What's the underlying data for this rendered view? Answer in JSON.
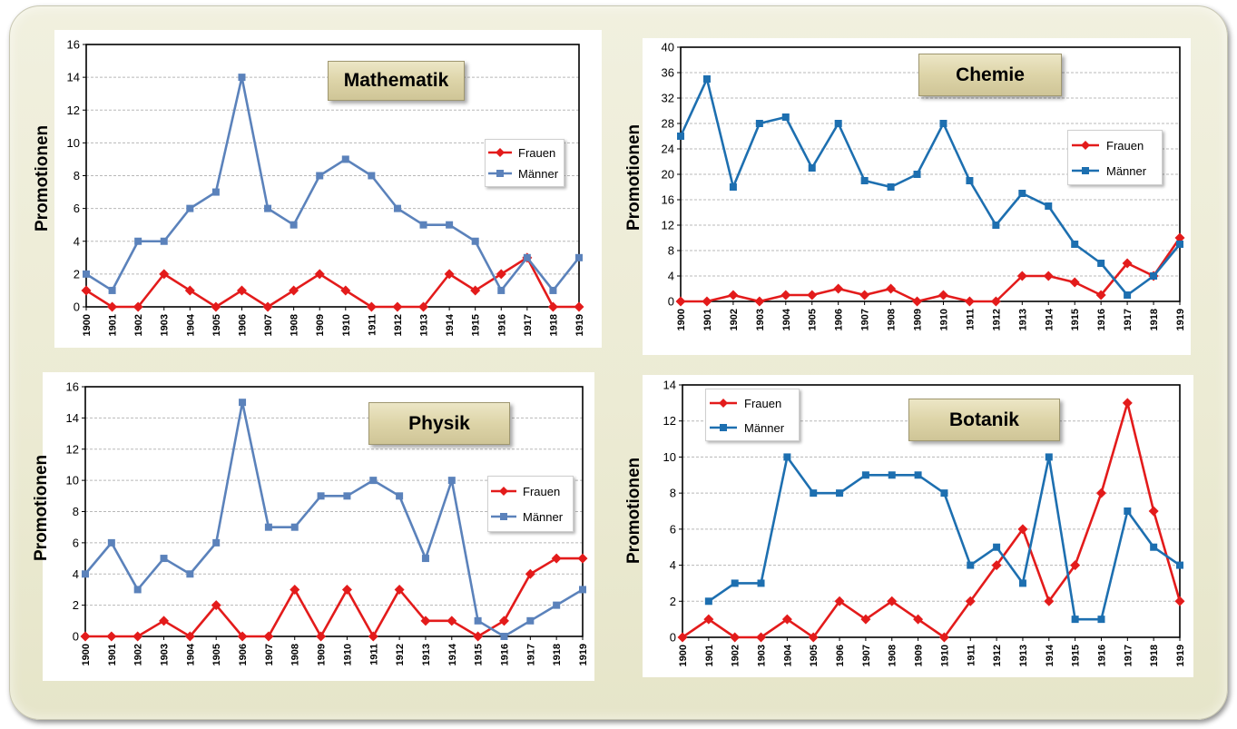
{
  "chart_data": [
    {
      "type": "line",
      "title": "Mathematik",
      "ylabel": "Promotionen",
      "ylim": [
        0,
        16
      ],
      "yticks": [
        0,
        2,
        4,
        6,
        8,
        10,
        12,
        14,
        16
      ],
      "categories": [
        "1900",
        "1901",
        "1902",
        "1903",
        "1904",
        "1905",
        "1906",
        "1907",
        "1908",
        "1909",
        "1910",
        "1911",
        "1912",
        "1913",
        "1914",
        "1915",
        "1916",
        "1917",
        "1918",
        "1919"
      ],
      "series": [
        {
          "name": "Frauen",
          "color": "#e31b1b",
          "marker": "diamond",
          "values": [
            1,
            0,
            0,
            2,
            1,
            0,
            1,
            0,
            1,
            2,
            1,
            0,
            0,
            0,
            2,
            1,
            2,
            3,
            0,
            0
          ]
        },
        {
          "name": "Männer",
          "color": "#5b82bb",
          "marker": "square",
          "values": [
            2,
            1,
            4,
            4,
            6,
            7,
            14,
            6,
            5,
            8,
            9,
            8,
            6,
            5,
            5,
            4,
            1,
            3,
            1,
            3
          ]
        }
      ],
      "grid": true,
      "legend_position": "right"
    },
    {
      "type": "line",
      "title": "Chemie",
      "ylabel": "Promotionen",
      "ylim": [
        0,
        40
      ],
      "yticks": [
        0,
        4,
        8,
        12,
        16,
        20,
        24,
        28,
        32,
        36,
        40
      ],
      "categories": [
        "1900",
        "1901",
        "1902",
        "1903",
        "1904",
        "1905",
        "1906",
        "1907",
        "1908",
        "1909",
        "1910",
        "1911",
        "1912",
        "1913",
        "1914",
        "1915",
        "1916",
        "1917",
        "1918",
        "1919"
      ],
      "series": [
        {
          "name": "Frauen",
          "color": "#e31b1b",
          "marker": "diamond",
          "values": [
            0,
            0,
            1,
            0,
            1,
            1,
            2,
            1,
            2,
            0,
            1,
            0,
            0,
            4,
            4,
            3,
            1,
            6,
            4,
            10
          ]
        },
        {
          "name": "Männer",
          "color": "#1d6fb0",
          "marker": "square",
          "values": [
            26,
            35,
            18,
            28,
            29,
            21,
            28,
            19,
            18,
            20,
            28,
            19,
            12,
            17,
            15,
            9,
            6,
            1,
            4,
            9
          ]
        }
      ],
      "grid": true,
      "legend_position": "right"
    },
    {
      "type": "line",
      "title": "Physik",
      "ylabel": "Promotionen",
      "ylim": [
        0,
        16
      ],
      "yticks": [
        0,
        2,
        4,
        6,
        8,
        10,
        12,
        14,
        16
      ],
      "categories": [
        "1900",
        "1901",
        "1902",
        "1903",
        "1904",
        "1905",
        "1906",
        "1907",
        "1908",
        "1909",
        "1910",
        "1911",
        "1912",
        "1913",
        "1914",
        "1915",
        "1916",
        "1917",
        "1918",
        "1919"
      ],
      "series": [
        {
          "name": "Frauen",
          "color": "#e31b1b",
          "marker": "diamond",
          "values": [
            0,
            0,
            0,
            1,
            0,
            2,
            0,
            0,
            3,
            0,
            3,
            0,
            3,
            1,
            1,
            0,
            1,
            4,
            5,
            5
          ]
        },
        {
          "name": "Männer",
          "color": "#5b82bb",
          "marker": "square",
          "values": [
            4,
            6,
            3,
            5,
            4,
            6,
            15,
            7,
            7,
            9,
            9,
            10,
            9,
            5,
            10,
            1,
            0,
            1,
            2,
            3
          ]
        }
      ],
      "grid": true,
      "legend_position": "right"
    },
    {
      "type": "line",
      "title": "Botanik",
      "ylabel": "Promotionen",
      "ylim": [
        0,
        14
      ],
      "yticks": [
        0,
        2,
        4,
        6,
        8,
        10,
        12,
        14
      ],
      "categories": [
        "1900",
        "1901",
        "1902",
        "1903",
        "1904",
        "1905",
        "1906",
        "1907",
        "1908",
        "1909",
        "1910",
        "1911",
        "1912",
        "1913",
        "1914",
        "1915",
        "1916",
        "1917",
        "1918",
        "1919"
      ],
      "series": [
        {
          "name": "Frauen",
          "color": "#e31b1b",
          "marker": "diamond",
          "values": [
            0,
            1,
            0,
            0,
            1,
            0,
            2,
            1,
            2,
            1,
            0,
            2,
            4,
            6,
            2,
            4,
            8,
            13,
            7,
            2
          ]
        },
        {
          "name": "Männer",
          "color": "#1d6fb0",
          "marker": "square",
          "values": [
            null,
            2,
            3,
            3,
            10,
            8,
            8,
            9,
            9,
            9,
            8,
            4,
            5,
            3,
            10,
            1,
            1,
            7,
            5,
            4
          ]
        }
      ],
      "grid": true,
      "legend_position": "top-left"
    }
  ]
}
